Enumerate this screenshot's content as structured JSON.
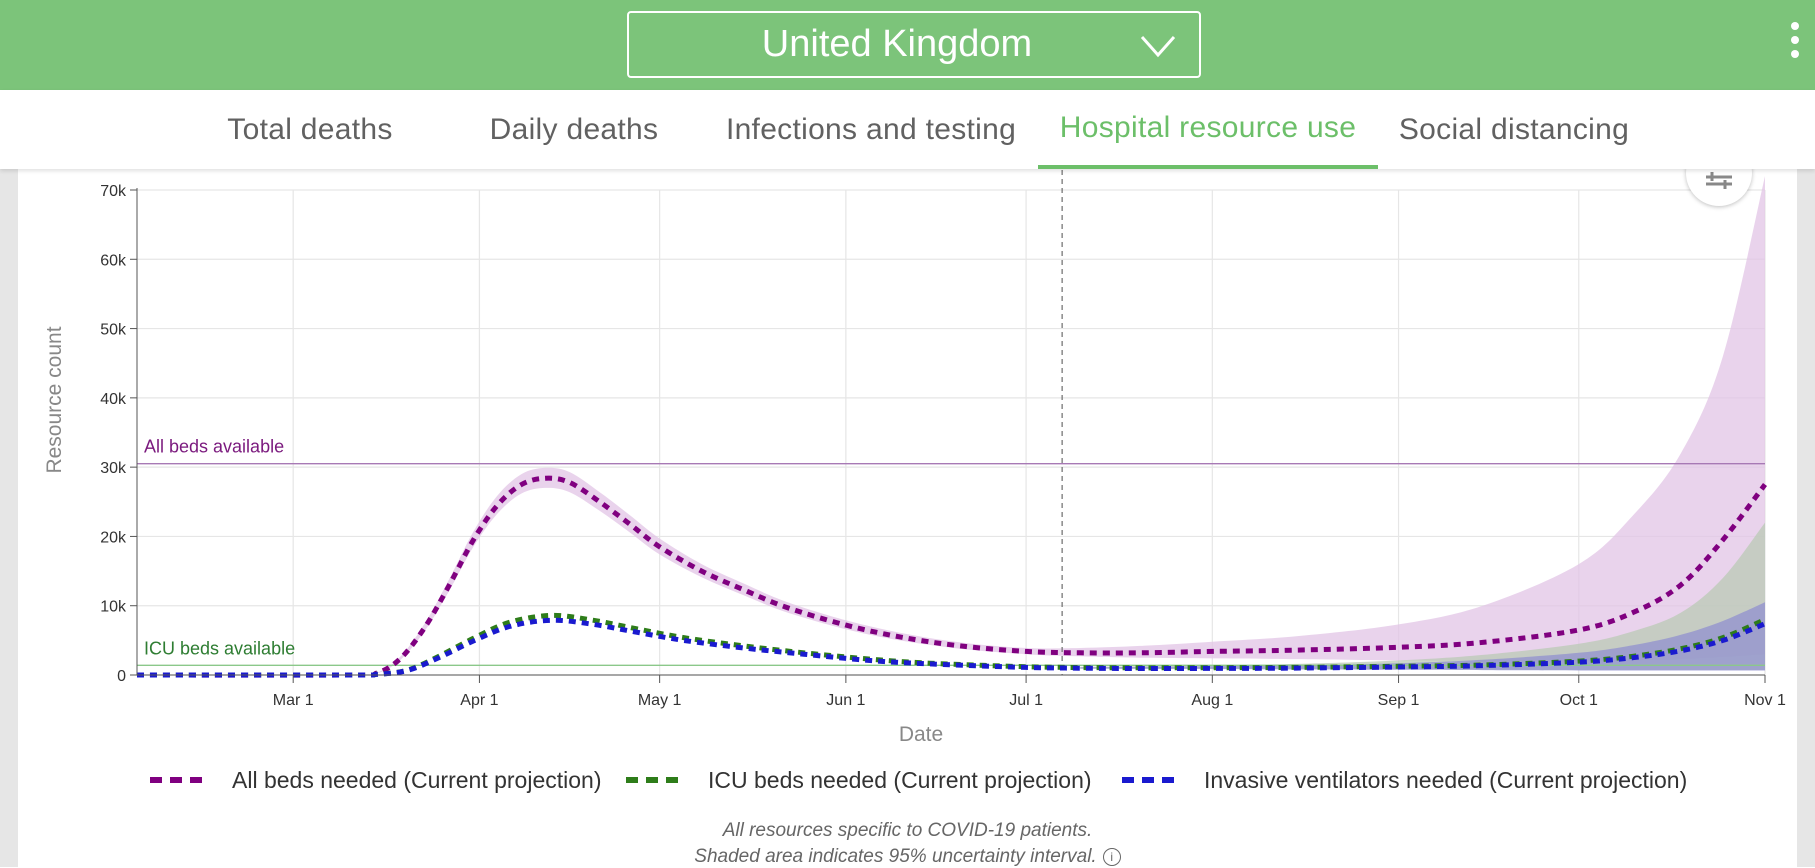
{
  "header": {
    "country": "United Kingdom",
    "dropdown_icon": "chevron-down-icon",
    "menu_icon": "kebab-menu-icon"
  },
  "tabs": [
    {
      "label": "Total deaths",
      "active": false
    },
    {
      "label": "Daily deaths",
      "active": false
    },
    {
      "label": "Infections and testing",
      "active": false
    },
    {
      "label": "Hospital resource use",
      "active": true
    },
    {
      "label": "Social distancing",
      "active": false
    }
  ],
  "settings_icon": "sliders-icon",
  "chart_data": {
    "type": "line",
    "xlabel": "Date",
    "ylabel": "Resource count",
    "x_ticks": [
      "Mar 1",
      "Apr 1",
      "May 1",
      "Jun 1",
      "Jul 1",
      "Aug 1",
      "Sep 1",
      "Oct 1",
      "Nov 1"
    ],
    "y_ticks": [
      "0",
      "10k",
      "20k",
      "30k",
      "40k",
      "50k",
      "60k",
      "70k"
    ],
    "xlim": [
      "2020-02-04",
      "2020-11-01"
    ],
    "ylim": [
      0,
      70000
    ],
    "grid": true,
    "legend_position": "bottom",
    "today_marker": "2020-07-07",
    "reference_lines": [
      {
        "label": "All beds available",
        "value": 30500,
        "color": "#a779b5",
        "text_color": "#7b1a7e"
      },
      {
        "label": "ICU beds available",
        "value": 1400,
        "color": "#8bc88a",
        "text_color": "#2e7d32"
      }
    ],
    "series": [
      {
        "name": "All beds needed (Current projection)",
        "color": "#800080",
        "band_color": "#e2c4e6",
        "points": [
          [
            "2020-02-04",
            0
          ],
          [
            "2020-03-10",
            0
          ],
          [
            "2020-03-15",
            300
          ],
          [
            "2020-03-19",
            2500
          ],
          [
            "2020-03-23",
            7000
          ],
          [
            "2020-03-27",
            13000
          ],
          [
            "2020-03-31",
            19500
          ],
          [
            "2020-04-04",
            24500
          ],
          [
            "2020-04-08",
            27500
          ],
          [
            "2020-04-12",
            28400
          ],
          [
            "2020-04-16",
            27800
          ],
          [
            "2020-04-21",
            25000
          ],
          [
            "2020-04-26",
            21800
          ],
          [
            "2020-05-01",
            18500
          ],
          [
            "2020-05-08",
            15000
          ],
          [
            "2020-05-15",
            12300
          ],
          [
            "2020-05-22",
            9800
          ],
          [
            "2020-06-01",
            7200
          ],
          [
            "2020-06-10",
            5500
          ],
          [
            "2020-06-20",
            4200
          ],
          [
            "2020-07-01",
            3400
          ],
          [
            "2020-07-10",
            3200
          ],
          [
            "2020-07-20",
            3200
          ],
          [
            "2020-08-01",
            3400
          ],
          [
            "2020-08-15",
            3600
          ],
          [
            "2020-09-01",
            4000
          ],
          [
            "2020-09-15",
            4700
          ],
          [
            "2020-10-01",
            6500
          ],
          [
            "2020-10-10",
            9000
          ],
          [
            "2020-10-18",
            13000
          ],
          [
            "2020-10-25",
            19500
          ],
          [
            "2020-11-01",
            27500
          ]
        ],
        "band": [
          [
            "2020-02-04",
            0,
            0
          ],
          [
            "2020-03-10",
            0,
            0
          ],
          [
            "2020-03-15",
            250,
            350
          ],
          [
            "2020-03-19",
            2300,
            2800
          ],
          [
            "2020-03-23",
            6500,
            7600
          ],
          [
            "2020-03-27",
            12200,
            13900
          ],
          [
            "2020-03-31",
            18500,
            20700
          ],
          [
            "2020-04-04",
            23300,
            25900
          ],
          [
            "2020-04-08",
            26200,
            29000
          ],
          [
            "2020-04-12",
            27000,
            29900
          ],
          [
            "2020-04-16",
            26400,
            29300
          ],
          [
            "2020-04-21",
            23700,
            26400
          ],
          [
            "2020-04-26",
            20600,
            23100
          ],
          [
            "2020-05-01",
            17400,
            19700
          ],
          [
            "2020-05-08",
            14100,
            16000
          ],
          [
            "2020-05-15",
            11500,
            13200
          ],
          [
            "2020-05-22",
            9100,
            10600
          ],
          [
            "2020-06-01",
            6600,
            7900
          ],
          [
            "2020-06-10",
            5000,
            6100
          ],
          [
            "2020-06-20",
            3800,
            4700
          ],
          [
            "2020-07-01",
            3000,
            3900
          ],
          [
            "2020-07-10",
            2700,
            3900
          ],
          [
            "2020-07-20",
            2500,
            4200
          ],
          [
            "2020-08-01",
            2400,
            4800
          ],
          [
            "2020-08-15",
            2300,
            5600
          ],
          [
            "2020-09-01",
            2100,
            7300
          ],
          [
            "2020-09-15",
            2000,
            10000
          ],
          [
            "2020-10-01",
            2000,
            16000
          ],
          [
            "2020-10-10",
            2100,
            23000
          ],
          [
            "2020-10-18",
            2300,
            32000
          ],
          [
            "2020-10-25",
            2600,
            46000
          ],
          [
            "2020-11-01",
            3000,
            72000
          ]
        ]
      },
      {
        "name": "ICU beds needed (Current projection)",
        "color": "#2e7d1a",
        "band_color": "#b9c9b6",
        "points": [
          [
            "2020-02-04",
            0
          ],
          [
            "2020-03-10",
            0
          ],
          [
            "2020-03-15",
            100
          ],
          [
            "2020-03-20",
            700
          ],
          [
            "2020-03-25",
            2600
          ],
          [
            "2020-03-31",
            5300
          ],
          [
            "2020-04-06",
            7600
          ],
          [
            "2020-04-13",
            8600
          ],
          [
            "2020-04-20",
            7900
          ],
          [
            "2020-04-27",
            6700
          ],
          [
            "2020-05-05",
            5400
          ],
          [
            "2020-05-15",
            4200
          ],
          [
            "2020-05-25",
            3200
          ],
          [
            "2020-06-05",
            2300
          ],
          [
            "2020-06-15",
            1700
          ],
          [
            "2020-07-01",
            1200
          ],
          [
            "2020-07-15",
            1050
          ],
          [
            "2020-08-01",
            1050
          ],
          [
            "2020-08-15",
            1100
          ],
          [
            "2020-09-01",
            1250
          ],
          [
            "2020-09-15",
            1450
          ],
          [
            "2020-10-01",
            2000
          ],
          [
            "2020-10-10",
            2700
          ],
          [
            "2020-10-18",
            3800
          ],
          [
            "2020-10-25",
            5400
          ],
          [
            "2020-11-01",
            8000
          ]
        ],
        "band": [
          [
            "2020-07-10",
            950,
            1200
          ],
          [
            "2020-08-01",
            900,
            1400
          ],
          [
            "2020-08-15",
            850,
            1600
          ],
          [
            "2020-09-01",
            800,
            2100
          ],
          [
            "2020-09-15",
            750,
            2900
          ],
          [
            "2020-10-01",
            700,
            4500
          ],
          [
            "2020-10-10",
            700,
            6300
          ],
          [
            "2020-10-18",
            700,
            9000
          ],
          [
            "2020-10-25",
            700,
            14000
          ],
          [
            "2020-11-01",
            700,
            22000
          ]
        ]
      },
      {
        "name": "Invasive ventilators needed (Current projection)",
        "color": "#1a1acf",
        "band_color": "#9090cf",
        "points": [
          [
            "2020-02-04",
            0
          ],
          [
            "2020-03-10",
            0
          ],
          [
            "2020-03-15",
            100
          ],
          [
            "2020-03-20",
            650
          ],
          [
            "2020-03-25",
            2400
          ],
          [
            "2020-03-31",
            4900
          ],
          [
            "2020-04-06",
            7000
          ],
          [
            "2020-04-13",
            7900
          ],
          [
            "2020-04-20",
            7300
          ],
          [
            "2020-04-27",
            6200
          ],
          [
            "2020-05-05",
            5000
          ],
          [
            "2020-05-15",
            3900
          ],
          [
            "2020-05-25",
            3000
          ],
          [
            "2020-06-05",
            2100
          ],
          [
            "2020-06-15",
            1600
          ],
          [
            "2020-07-01",
            1100
          ],
          [
            "2020-07-15",
            950
          ],
          [
            "2020-08-01",
            950
          ],
          [
            "2020-08-15",
            1000
          ],
          [
            "2020-09-01",
            1150
          ],
          [
            "2020-09-15",
            1350
          ],
          [
            "2020-10-01",
            1850
          ],
          [
            "2020-10-10",
            2500
          ],
          [
            "2020-10-18",
            3500
          ],
          [
            "2020-10-25",
            5000
          ],
          [
            "2020-11-01",
            7400
          ]
        ],
        "band": [
          [
            "2020-07-10",
            900,
            1100
          ],
          [
            "2020-08-01",
            850,
            1250
          ],
          [
            "2020-08-15",
            800,
            1400
          ],
          [
            "2020-09-01",
            750,
            1700
          ],
          [
            "2020-09-15",
            700,
            2200
          ],
          [
            "2020-10-01",
            650,
            3200
          ],
          [
            "2020-10-10",
            650,
            4300
          ],
          [
            "2020-10-18",
            650,
            5800
          ],
          [
            "2020-10-25",
            650,
            7800
          ],
          [
            "2020-11-01",
            650,
            10500
          ]
        ]
      }
    ]
  },
  "footnote": {
    "line1": "All resources specific to COVID-19 patients.",
    "line2": "Shaded area indicates 95% uncertainty interval.",
    "info_icon": "info-icon"
  }
}
